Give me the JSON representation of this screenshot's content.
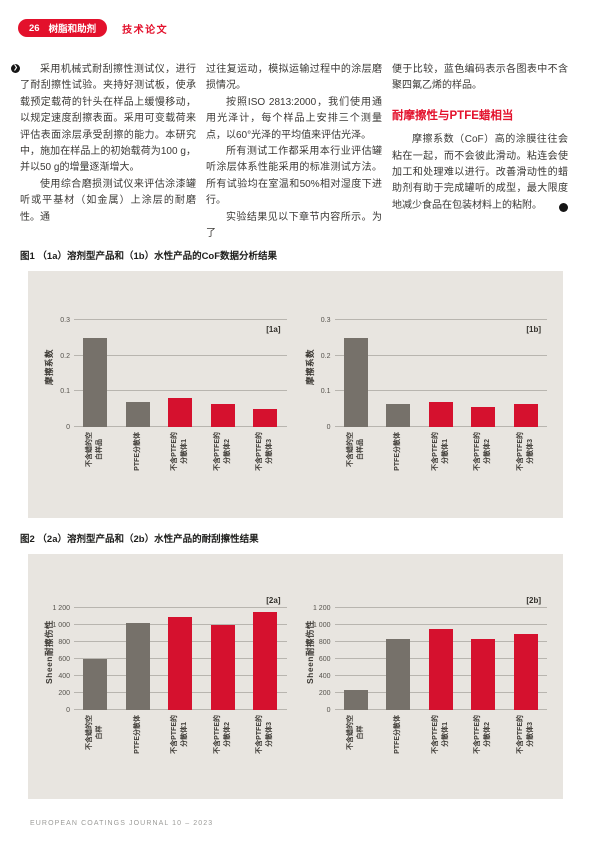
{
  "theme": {
    "accent_red": "#e3112c",
    "bar_red": "#d5112e",
    "bar_gray": "#76716a",
    "panel_bg": "#e8e5e0",
    "grid_color": "#b8b5af"
  },
  "icons": {
    "continue_arrow": "❯"
  },
  "header": {
    "page_number": "26",
    "section": "树脂和助剂",
    "article_type": "技术论文"
  },
  "columns": [
    {
      "blocks": [
        {
          "type": "p",
          "indent": true,
          "text": "采用机械式耐刮擦性测试仪，进行了耐刮擦性试验。夹持好测试板，使承载预定载荷的针头在样品上缓慢移动，以规定速度刮擦表面。采用可变载荷来评估表面涂层承受刮擦的能力。本研究中，施加在样品上的初始载荷为100 g，并以50 g的增量逐渐增大。"
        },
        {
          "type": "p",
          "indent": true,
          "text": "使用综合磨损测试仪来评估涂漆罐听或平基材（如金属）上涂层的耐磨性。通"
        }
      ]
    },
    {
      "blocks": [
        {
          "type": "p",
          "indent": false,
          "text": "过往复运动，模拟运输过程中的涂层磨损情况。"
        },
        {
          "type": "p",
          "indent": true,
          "text": "按照ISO 2813:2000，我们使用通用光泽计，每个样品上安排三个测量点，以60°光泽的平均值来评估光泽。"
        },
        {
          "type": "p",
          "indent": true,
          "text": "所有测试工作都采用本行业评估罐听涂层体系性能采用的标准测试方法。所有试验均在室温和50%相对湿度下进行。"
        },
        {
          "type": "p",
          "indent": true,
          "text": "实验结果见以下章节内容所示。为了"
        }
      ]
    },
    {
      "blocks": [
        {
          "type": "p",
          "indent": false,
          "text": "便于比较，蓝色编码表示各图表中不含聚四氟乙烯的样品。"
        },
        {
          "type": "heading",
          "text": "耐摩擦性与PTFE蜡相当"
        },
        {
          "type": "p",
          "indent": true,
          "end_icon": true,
          "text": "摩擦系数（CoF）高的涂膜往往会粘在一起，而不会彼此滑动。粘连会使加工和处理难以进行。改善滑动性的蜡助剂有助于完成罐听的成型，最大限度地减少食品在包装材料上的粘附。"
        }
      ]
    }
  ],
  "figures": [
    {
      "caption": "图1 （1a）溶剂型产品和（1b）水性产品的CoF数据分析结果"
    },
    {
      "caption": "图2 （2a）溶剂型产品和（2b）水性产品的耐刮擦性结果"
    }
  ],
  "chart_data": [
    {
      "id": "1a",
      "type": "bar",
      "panel_tag": "[1a]",
      "ylabel": "摩擦系数",
      "ymax": 0.3,
      "yticks": [
        {
          "v": 0,
          "label": "0"
        },
        {
          "v": 0.1,
          "label": "0.1"
        },
        {
          "v": 0.2,
          "label": "0.2"
        },
        {
          "v": 0.3,
          "label": "0.3"
        }
      ],
      "categories": [
        [
          "不含蜡的空",
          "白样品"
        ],
        [
          "PTFE分散体"
        ],
        [
          "不含PTFE的",
          "分散体1"
        ],
        [
          "不含PTFE的",
          "分散体2"
        ],
        [
          "不含PTFE的",
          "分散体3"
        ]
      ],
      "values": [
        0.25,
        0.07,
        0.08,
        0.065,
        0.05
      ],
      "bar_colors": [
        "gray",
        "gray",
        "red",
        "red",
        "red"
      ]
    },
    {
      "id": "1b",
      "type": "bar",
      "panel_tag": "[1b]",
      "ylabel": "摩擦系数",
      "ymax": 0.3,
      "yticks": [
        {
          "v": 0,
          "label": "0"
        },
        {
          "v": 0.1,
          "label": "0.1"
        },
        {
          "v": 0.2,
          "label": "0.2"
        },
        {
          "v": 0.3,
          "label": "0.3"
        }
      ],
      "categories": [
        [
          "不含蜡的空",
          "白样品"
        ],
        [
          "PTFE分散体"
        ],
        [
          "不含PTFE的",
          "分散体1"
        ],
        [
          "不含PTFE的",
          "分散体2"
        ],
        [
          "不含PTFE的",
          "分散体3"
        ]
      ],
      "values": [
        0.25,
        0.065,
        0.07,
        0.055,
        0.065
      ],
      "bar_colors": [
        "gray",
        "gray",
        "red",
        "red",
        "red"
      ]
    },
    {
      "id": "2a",
      "type": "bar",
      "panel_tag": "[2a]",
      "ylabel": "Sheen耐擦伤性",
      "ymax": 1200,
      "yticks": [
        {
          "v": 0,
          "label": "0"
        },
        {
          "v": 200,
          "label": "200"
        },
        {
          "v": 400,
          "label": "400"
        },
        {
          "v": 600,
          "label": "600"
        },
        {
          "v": 800,
          "label": "800"
        },
        {
          "v": 1000,
          "label": "1 000"
        },
        {
          "v": 1200,
          "label": "1 200"
        }
      ],
      "categories": [
        [
          "不含蜡的空",
          "白样"
        ],
        [
          "PTFE分散体"
        ],
        [
          "不含PTFE的",
          "分散体1"
        ],
        [
          "不含PTFE的",
          "分散体2"
        ],
        [
          "不含PTFE的",
          "分散体3"
        ]
      ],
      "values": [
        600,
        1020,
        1090,
        1000,
        1150
      ],
      "bar_colors": [
        "gray",
        "gray",
        "red",
        "red",
        "red"
      ]
    },
    {
      "id": "2b",
      "type": "bar",
      "panel_tag": "[2b]",
      "ylabel": "Sheen耐擦伤性",
      "ymax": 1200,
      "yticks": [
        {
          "v": 0,
          "label": "0"
        },
        {
          "v": 200,
          "label": "200"
        },
        {
          "v": 400,
          "label": "400"
        },
        {
          "v": 600,
          "label": "600"
        },
        {
          "v": 800,
          "label": "800"
        },
        {
          "v": 1000,
          "label": "1 000"
        },
        {
          "v": 1200,
          "label": "1 200"
        }
      ],
      "categories": [
        [
          "不含蜡的空",
          "白样"
        ],
        [
          "PTFE分散体"
        ],
        [
          "不含PTFE的",
          "分散体1"
        ],
        [
          "不含PTFE的",
          "分散体2"
        ],
        [
          "不含PTFE的",
          "分散体3"
        ]
      ],
      "values": [
        240,
        840,
        950,
        830,
        890
      ],
      "bar_colors": [
        "gray",
        "gray",
        "red",
        "red",
        "red"
      ]
    }
  ],
  "footer": {
    "text": "EUROPEAN COATINGS JOURNAL 10 – 2023"
  }
}
